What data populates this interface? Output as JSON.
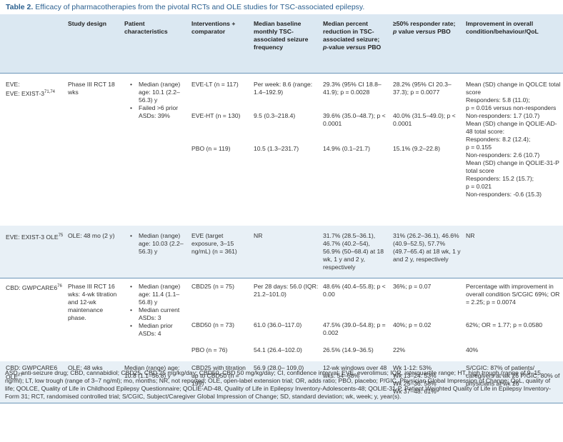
{
  "caption": {
    "label": "Table 2.",
    "text": "Efficacy of pharmacotherapies from the pivotal RCTs and OLE studies for TSC-associated epilepsy."
  },
  "headers": {
    "design": "Study design",
    "patient": "Patient characteristics",
    "intervention": "Interventions + comparator",
    "baseline": "Median baseline monthly TSC-associated seizure frequency",
    "reduction": "Median percent reduction in TSC-associated seizure; p-value versus PBO",
    "responder": "≥50% responder rate; p value versus PBO",
    "improvement": "Improvement in overall condition/behaviour/QoL"
  },
  "row1": {
    "study": "EVE: EXIST-3",
    "study_ref": "71,74",
    "design": "Phase III RCT 18 wks",
    "patient": [
      "Median (range) age: 10.1 (2.2–56.3) y",
      "Failed >6 prior ASDs: 39%"
    ],
    "arms": [
      {
        "name": "EVE-LT (n = 117)",
        "baseline": "Per week: 8.6 (range: 1.4–192.9)",
        "reduction": "29.3% (95% CI 18.8–41.9); p = 0.0028",
        "responder": "28.2% (95% CI 20.3–37.3); p = 0.0077"
      },
      {
        "name": "EVE-HT (n = 130)",
        "baseline": "9.5 (0.3–218.4)",
        "reduction": "39.6% (35.0–48.7); p < 0.0001",
        "responder": "40.0% (31.5–49.0); p < 0.0001"
      },
      {
        "name": "PBO (n = 119)",
        "baseline": "10.5 (1.3–231.7)",
        "reduction": "14.9% (0.1–21.7)",
        "responder": "15.1% (9.2–22.8)"
      }
    ],
    "improvement": [
      "Mean (SD) change in QOLCE total score",
      "Responders: 5.8 (11.0);",
      "p = 0.016 versus non-responders",
      "Non-responders: 1.7 (10.7)",
      "Mean (SD) change in QOLIE-AD-48 total score:",
      "Responders: 8.2 (12.4);",
      "p = 0.155",
      "Non-responders: 2.6 (10.7)",
      "Mean (SD) change in QOLIE-31-P total score",
      "Responders: 15.2 (15.7);",
      "p = 0.021",
      "Non-responders: -0.6 (15.3)"
    ]
  },
  "row2": {
    "study": "EVE: EXIST-3 OLE",
    "study_ref": "75",
    "design": "OLE: 48 mo (2 y)",
    "patient": [
      "Median (range) age: 10.03 (2.2–56.3) y"
    ],
    "intervention": "EVE (target exposure, 3–15 ng/mL) (n = 361)",
    "baseline": "NR",
    "reduction": "31.7% (28.5–36.1), 46.7% (40.2–54), 56.9% (50–68.4) at 18 wk, 1 y and 2 y, respectively",
    "responder": "31% (26.2–36.1), 46.6% (40.9–52.5), 57.7% (49.7–65.4) at 18 wk, 1 y and 2 y, respectively",
    "improvement": "NR"
  },
  "row3": {
    "study": "CBD: GWPCARE6",
    "study_ref": "76",
    "design": "Phase III RCT 16 wks: 4-wk titration and 12-wk maintenance phase.",
    "patient": [
      "Median (range) age: 11.4 (1.1–56.8) y",
      "Median current ASDs: 3",
      "Median prior ASDs: 4"
    ],
    "arms": [
      {
        "name": "CBD25 (n = 75)",
        "baseline": "Per 28 days: 56.0 (IQR: 21.2–101.0)",
        "reduction": "48.6% (40.4–55.8); p < 0.00",
        "responder": "36%; p = 0.07",
        "improvement": "Percentage with improvement in overall condition S/CGIC 69%; OR = 2.25; p = 0.0074"
      },
      {
        "name": "CBD50 (n = 73)",
        "baseline": "61.0 (36.0–117.0)",
        "reduction": "47.5% (39.0–54.8); p = 0.002",
        "responder": "40%; p = 0.02",
        "improvement": "62%; OR = 1.77; p = 0.0580"
      },
      {
        "name": "PBO (n = 76)",
        "baseline": "54.1 (26.4–102.0)",
        "reduction": "26.5% (14.9–36.5)",
        "responder": "22%",
        "improvement": "40%"
      }
    ]
  },
  "row4": {
    "study": "CBD: GWPCARE6 OLE",
    "study_ref": "77",
    "design": "OLE: 48 wks",
    "patient": "Median (range) age: 10.8 (1.1–56.8) y",
    "intervention": "CBD25 with titration up to CBD50 (n = 199)",
    "baseline": "56.9 (28.0– 109.0)",
    "reduction": "12-wk windows over 48 wks: 54–68%",
    "responder": [
      "Wk 1-12: 53%",
      "Wk 13–24: 53%",
      "Wk 25–36: 58%",
      "Wk 37–48: 61%"
    ],
    "improvement": "S/CGIC: 87% of patients/ caregivers at wk 26 P/GIC: 80% of physicians at wk 26"
  },
  "footnote": "ASD, anti-seizure drug; CBD, cannabidiol; CBD25, CBD 25 mg/kg/day; CBD50, CBD 50 mg/kg/day; CI, confidence interval; EVE, everolimus; IQR, interquartile range; HT, high trough (range of 9–15 ng/ml); LT, low trough (range of 3–7 ng/ml); mo, months; NR, not reported; OLE, open-label extension trial; OR, adds ratio; PBO, placebo; P/GIC, Physician Global Impression of Change; QoL, quality of life; QOLCE, Quality of Life in Childhood Epilepsy Questionnaire; QOLIE-AD-48, Quality of Life in Epilepsy Inventory-Adolescents-48; QOLIE-31-P, Patient Weighted Quality of Life in Epilepsy Inventory-Form 31; RCT, randomised controlled trial; S/CGIC, Subject/Caregiver Global Impression of Change; SD, standard deviation; wk, week; y, year(s)."
}
